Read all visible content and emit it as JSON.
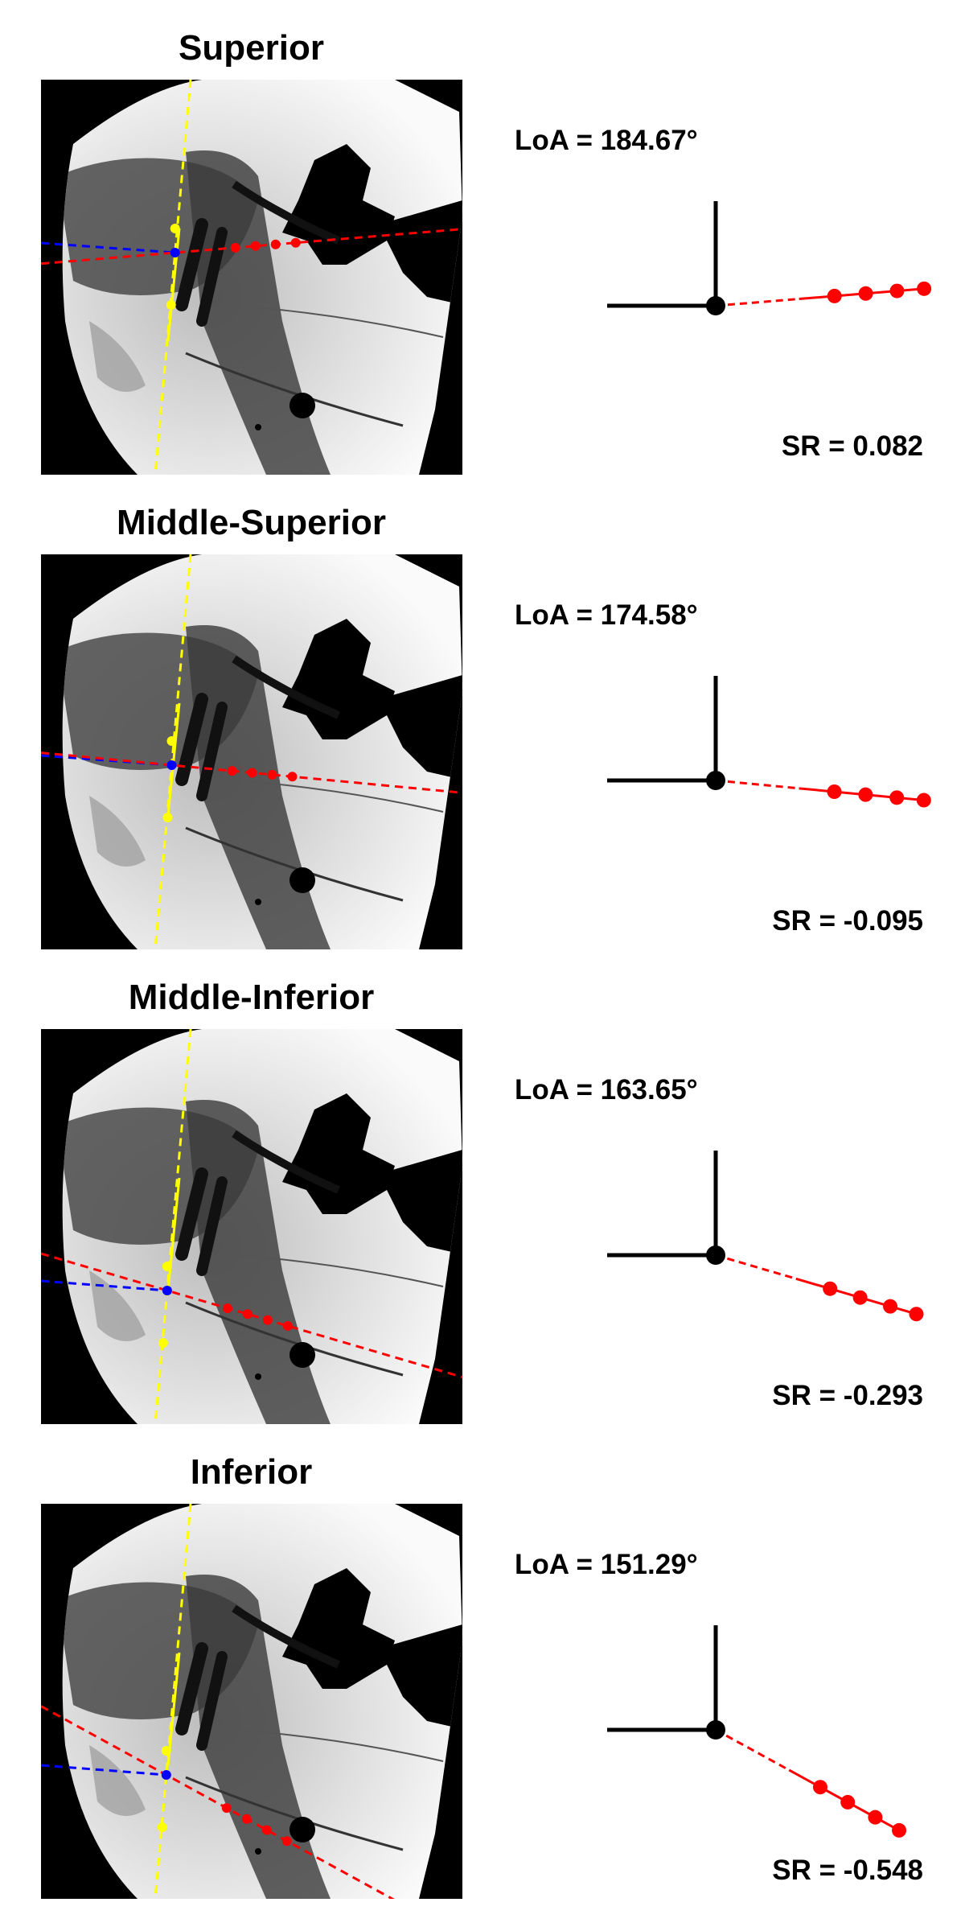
{
  "colors": {
    "yellow_axis": "#ffff00",
    "blue_line": "#0000ff",
    "red_line": "#ff0000",
    "reference_axes": "#000000"
  },
  "panels": [
    {
      "title": "Superior",
      "loa": "LoA = 184.67°",
      "sr": "SR = 0.082",
      "angle_deg": 184.67,
      "slope_ratio": 0.082
    },
    {
      "title": "Middle-Superior",
      "loa": "LoA = 174.58°",
      "sr": "SR = -0.095",
      "angle_deg": 174.58,
      "slope_ratio": -0.095
    },
    {
      "title": "Middle-Inferior",
      "loa": "LoA = 163.65°",
      "sr": "SR = -0.293",
      "angle_deg": 163.65,
      "slope_ratio": -0.293
    },
    {
      "title": "Inferior",
      "loa": "LoA = 151.29°",
      "sr": "SR = -0.548",
      "angle_deg": 151.29,
      "slope_ratio": -0.548
    }
  ]
}
